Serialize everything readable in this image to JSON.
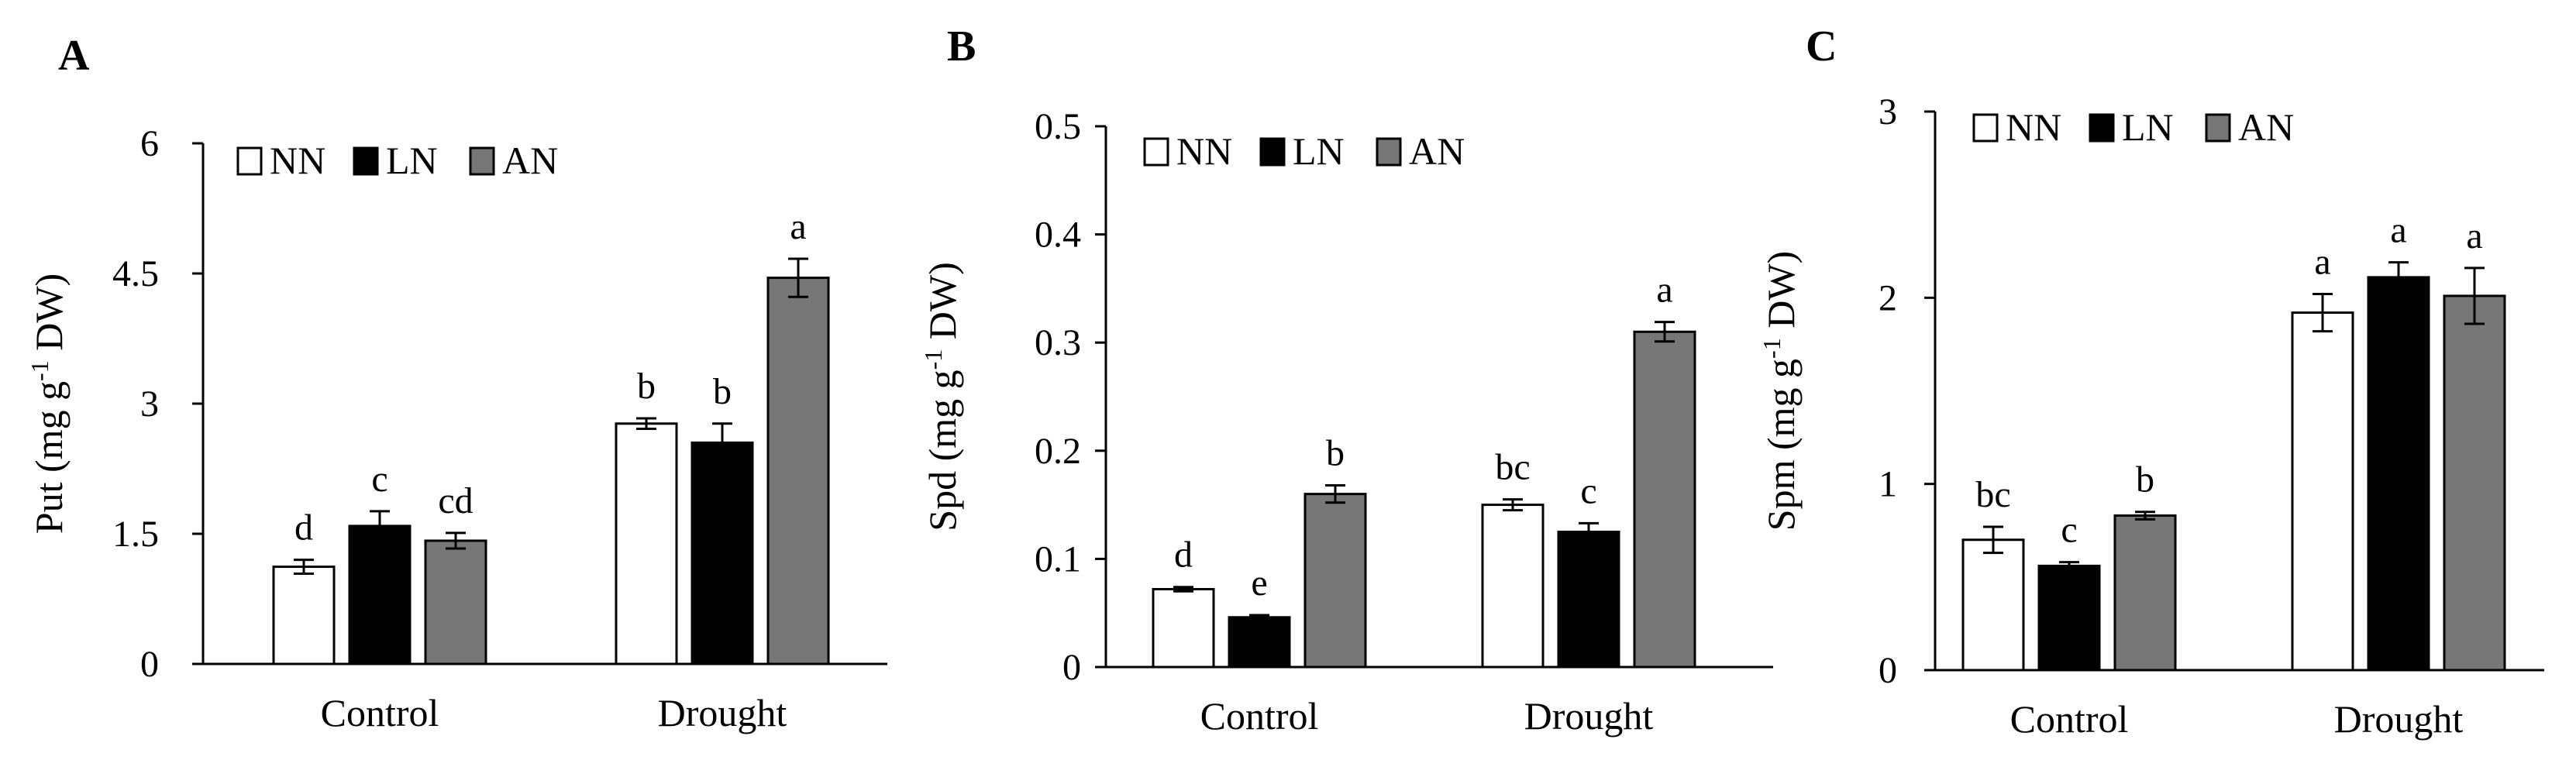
{
  "legend": [
    {
      "name": "NN",
      "color": "#ffffff"
    },
    {
      "name": "LN",
      "color": "#000000"
    },
    {
      "name": "AN",
      "color": "#777777"
    }
  ],
  "chart_data": [
    {
      "type": "bar",
      "panel": "A",
      "ylabel_main": "Put",
      "ylabel_unit_pre": "(mg g",
      "ylabel_sup": "-1",
      "ylabel_unit_post": " DW)",
      "ylim": [
        0,
        6
      ],
      "yticks": [
        0,
        1.5,
        3,
        4.5,
        6
      ],
      "ytick_labels": [
        "0",
        "1.5",
        "3",
        "4.5",
        "6"
      ],
      "categories": [
        "Control",
        "Drought"
      ],
      "series": [
        {
          "name": "NN",
          "values": [
            1.12,
            2.77
          ],
          "errors": [
            0.08,
            0.06
          ],
          "letters": [
            "d",
            "b"
          ]
        },
        {
          "name": "LN",
          "values": [
            1.59,
            2.55
          ],
          "errors": [
            0.17,
            0.22
          ],
          "letters": [
            "c",
            "b"
          ]
        },
        {
          "name": "AN",
          "values": [
            1.42,
            4.45
          ],
          "errors": [
            0.09,
            0.22
          ],
          "letters": [
            "cd",
            "a"
          ]
        }
      ],
      "legend_position": "top-left"
    },
    {
      "type": "bar",
      "panel": "B",
      "ylabel_main": "Spd",
      "ylabel_unit_pre": "(mg g",
      "ylabel_sup": "-1",
      "ylabel_unit_post": " DW)",
      "ylim": [
        0,
        0.5
      ],
      "yticks": [
        0,
        0.1,
        0.2,
        0.3,
        0.4,
        0.5
      ],
      "ytick_labels": [
        "0",
        "0.1",
        "0.2",
        "0.3",
        "0.4",
        "0.5"
      ],
      "categories": [
        "Control",
        "Drought"
      ],
      "series": [
        {
          "name": "NN",
          "values": [
            0.072,
            0.15
          ],
          "errors": [
            0.002,
            0.005
          ],
          "letters": [
            "d",
            "bc"
          ]
        },
        {
          "name": "LN",
          "values": [
            0.046,
            0.125
          ],
          "errors": [
            0.002,
            0.008
          ],
          "letters": [
            "e",
            "c"
          ]
        },
        {
          "name": "AN",
          "values": [
            0.16,
            0.31
          ],
          "errors": [
            0.008,
            0.009
          ],
          "letters": [
            "b",
            "a"
          ]
        }
      ],
      "legend_position": "top-left"
    },
    {
      "type": "bar",
      "panel": "C",
      "ylabel_main": "Spm",
      "ylabel_unit_pre": "(mg g",
      "ylabel_sup": "-1",
      "ylabel_unit_post": " DW)",
      "ylim": [
        0,
        3
      ],
      "yticks": [
        0,
        1,
        2,
        3
      ],
      "ytick_labels": [
        "0",
        "1",
        "2",
        "3"
      ],
      "categories": [
        "Control",
        "Drought"
      ],
      "series": [
        {
          "name": "NN",
          "values": [
            0.7,
            1.92
          ],
          "errors": [
            0.07,
            0.1
          ],
          "letters": [
            "bc",
            "a"
          ]
        },
        {
          "name": "LN",
          "values": [
            0.56,
            2.11
          ],
          "errors": [
            0.02,
            0.08
          ],
          "letters": [
            "c",
            "a"
          ]
        },
        {
          "name": "AN",
          "values": [
            0.83,
            2.01
          ],
          "errors": [
            0.02,
            0.15
          ],
          "letters": [
            "b",
            "a"
          ]
        }
      ],
      "legend_position": "top-left"
    }
  ]
}
